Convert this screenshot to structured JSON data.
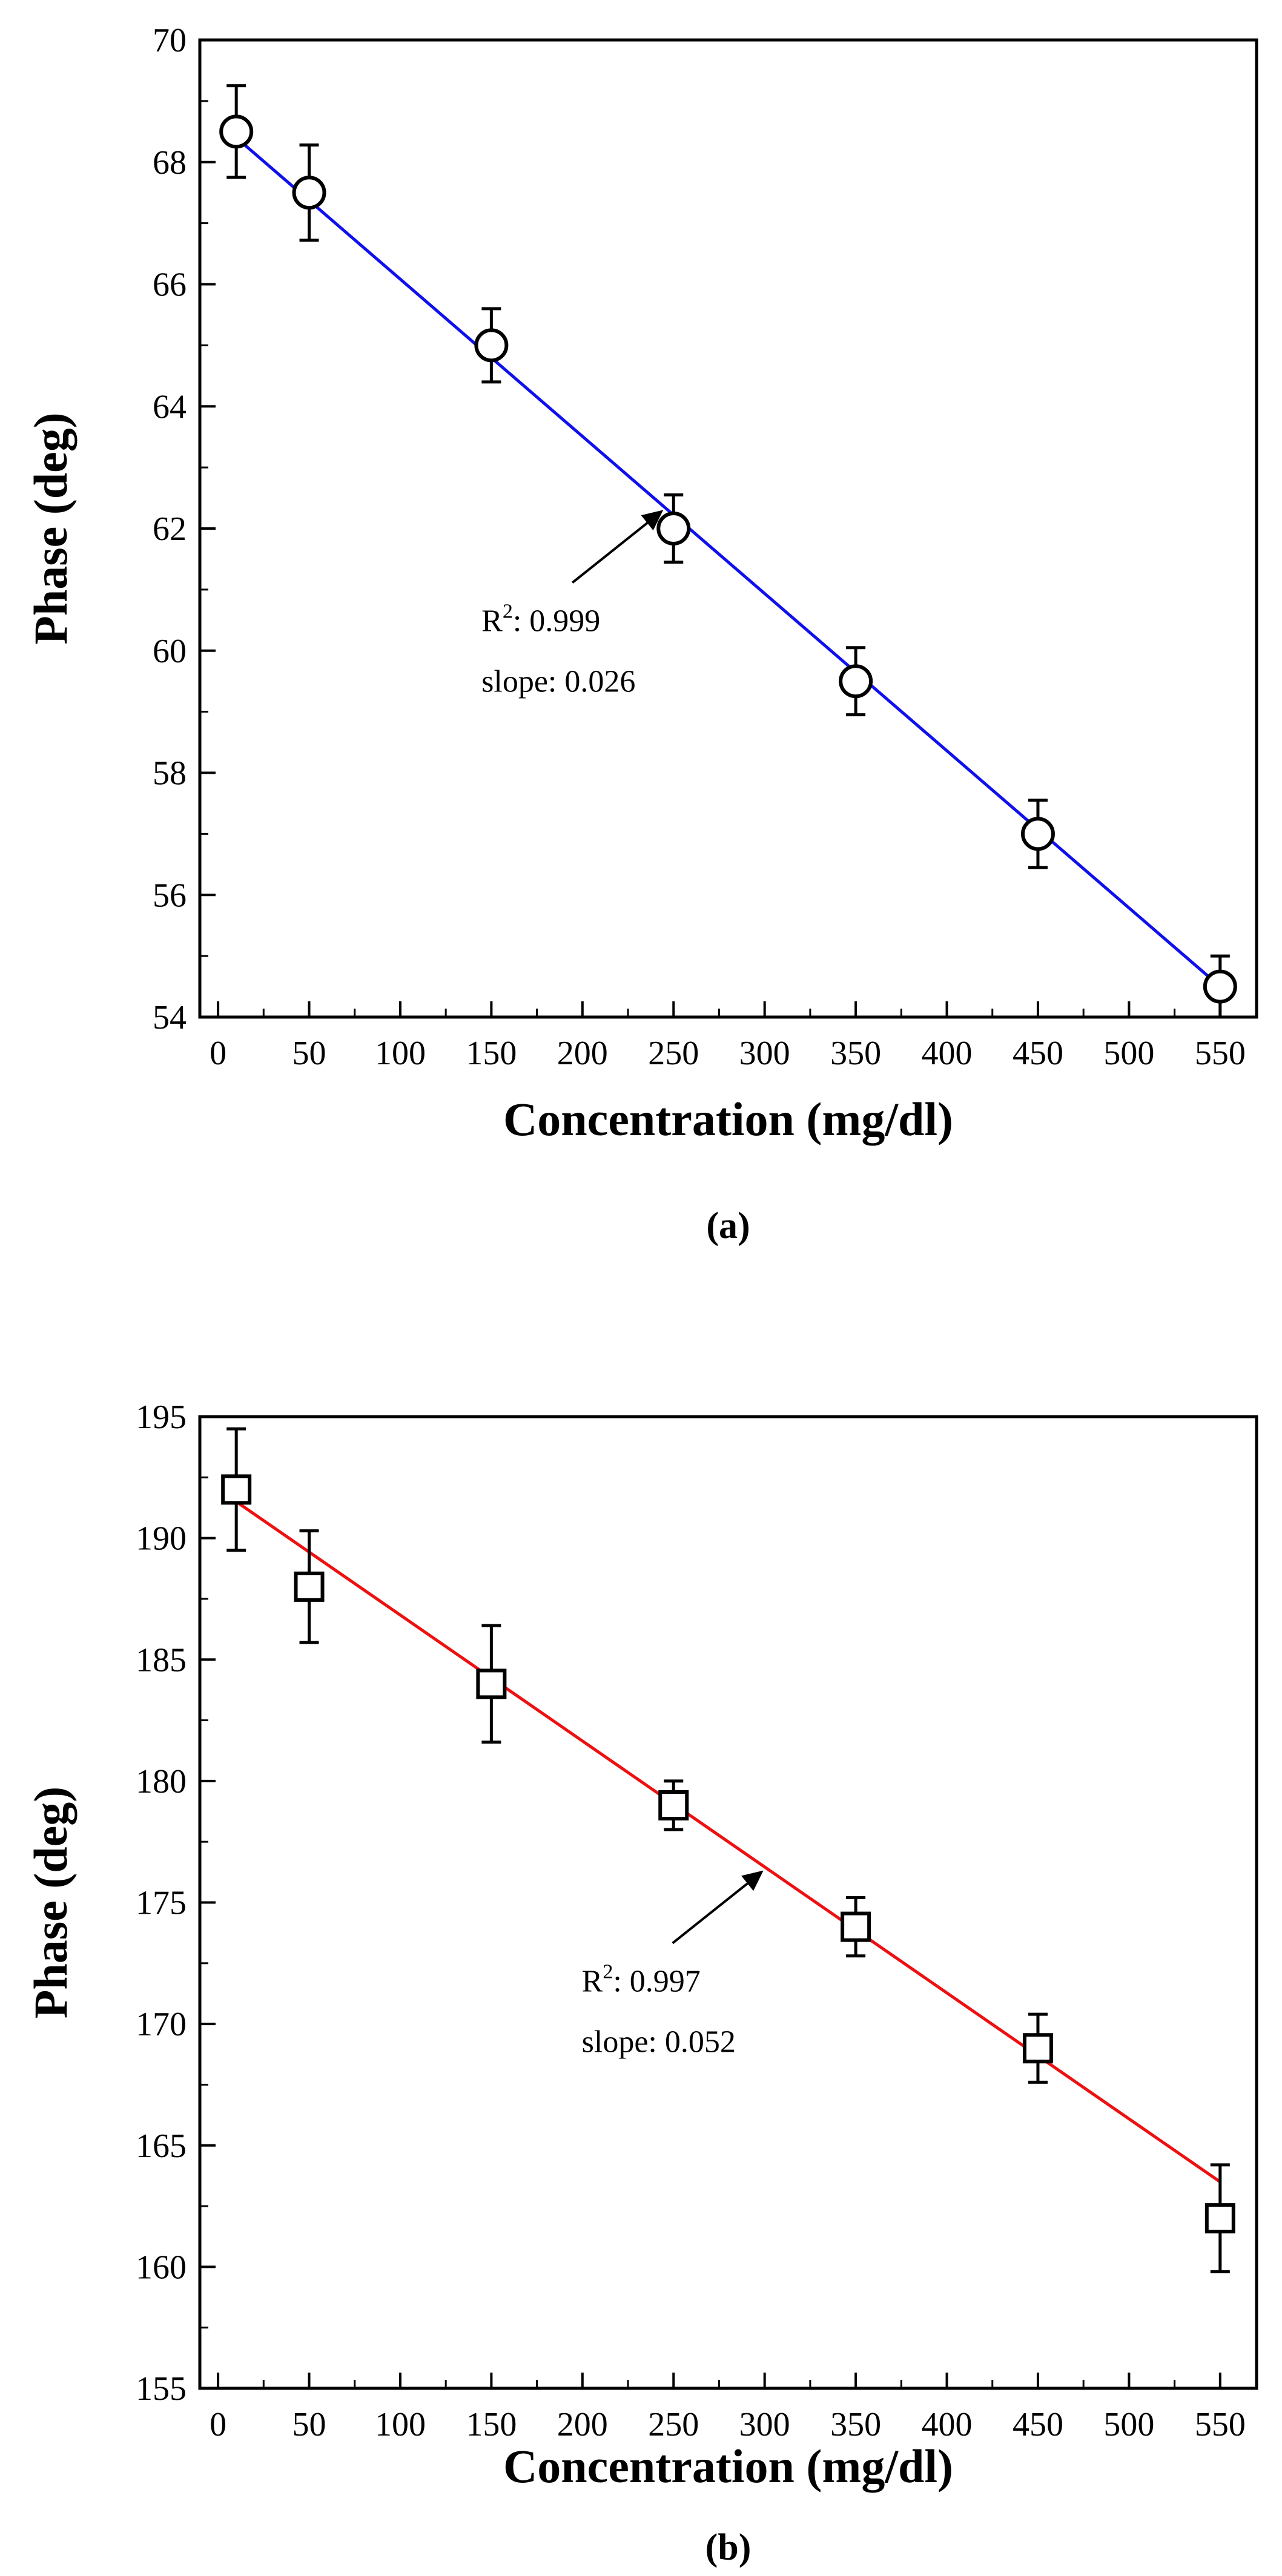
{
  "chart_data": [
    {
      "type": "scatter",
      "panel_label": "(a)",
      "xlabel": "Concentration (mg/dl)",
      "ylabel": "Phase (deg)",
      "xlim": [
        -10,
        570
      ],
      "ylim": [
        54,
        70
      ],
      "xticks": [
        0,
        50,
        100,
        150,
        200,
        250,
        300,
        350,
        400,
        450,
        500,
        550
      ],
      "yticks": [
        54,
        56,
        58,
        60,
        62,
        64,
        66,
        68,
        70
      ],
      "marker": "circle",
      "points": [
        {
          "x": 10,
          "y": 68.5,
          "err": 0.75
        },
        {
          "x": 50,
          "y": 67.5,
          "err": 0.78
        },
        {
          "x": 150,
          "y": 65.0,
          "err": 0.6
        },
        {
          "x": 250,
          "y": 62.0,
          "err": 0.55
        },
        {
          "x": 350,
          "y": 59.5,
          "err": 0.55
        },
        {
          "x": 450,
          "y": 57.0,
          "err": 0.55
        },
        {
          "x": 550,
          "y": 54.5,
          "err": 0.5
        }
      ],
      "fit": {
        "x0": 10,
        "y0": 68.4,
        "x1": 550,
        "y1": 54.5,
        "color": "#1010ee"
      },
      "annotation": {
        "r2_label": "R",
        "r2_sup": "2",
        "r2_value": ": 0.999",
        "slope_text": "slope: 0.026",
        "arrow_target_x": 243
      }
    },
    {
      "type": "scatter",
      "panel_label": "(b)",
      "xlabel": "Concentration (mg/dl)",
      "ylabel": "Phase (deg)",
      "xlim": [
        -10,
        570
      ],
      "ylim": [
        155,
        195
      ],
      "xticks": [
        0,
        50,
        100,
        150,
        200,
        250,
        300,
        350,
        400,
        450,
        500,
        550
      ],
      "yticks": [
        155,
        160,
        165,
        170,
        175,
        180,
        185,
        190,
        195
      ],
      "marker": "square",
      "points": [
        {
          "x": 10,
          "y": 192,
          "err": 2.5
        },
        {
          "x": 50,
          "y": 188,
          "err": 2.3
        },
        {
          "x": 150,
          "y": 184,
          "err": 2.4
        },
        {
          "x": 250,
          "y": 179,
          "err": 1.0
        },
        {
          "x": 350,
          "y": 174,
          "err": 1.2
        },
        {
          "x": 450,
          "y": 169,
          "err": 1.4
        },
        {
          "x": 550,
          "y": 162,
          "err": 2.2
        }
      ],
      "fit": {
        "x0": 10,
        "y0": 191.5,
        "x1": 550,
        "y1": 163.5,
        "color": "#ee1010"
      },
      "annotation": {
        "r2_label": "R",
        "r2_sup": "2",
        "r2_value": ": 0.997",
        "slope_text": "slope: 0.052",
        "arrow_target_x": 298
      }
    }
  ]
}
